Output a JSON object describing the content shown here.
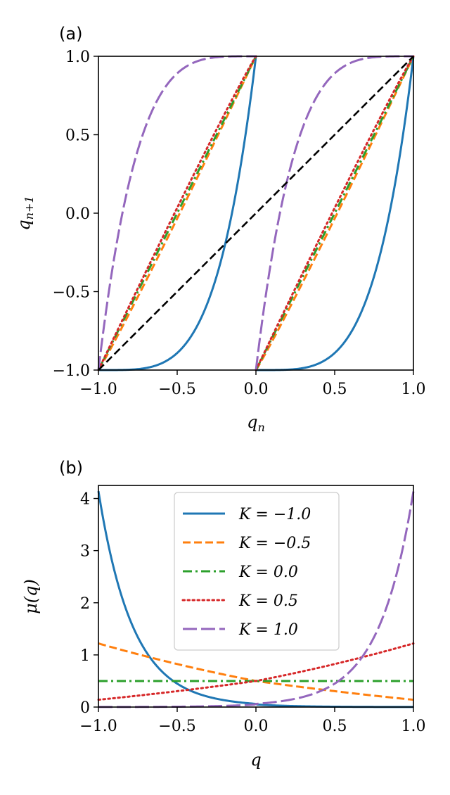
{
  "chart_data": [
    {
      "type": "line",
      "panel": "(a)",
      "xlabel": "q_n",
      "ylabel": "q_{n+1}",
      "xlim": [
        -1.0,
        1.0
      ],
      "ylim": [
        -1.0,
        1.0
      ],
      "xticks": [
        "−1.0",
        "−0.5",
        "0.0",
        "0.5",
        "1.0"
      ],
      "yticks": [
        "−1.0",
        "−0.5",
        "0.0",
        "0.5",
        "1.0"
      ],
      "series": [
        {
          "name": "K = −1.0",
          "K": -1.0,
          "color": "#1f77b4",
          "dash": "solid"
        },
        {
          "name": "K = −0.5",
          "K": -0.5,
          "color": "#ff7f0e",
          "dash": "dashed"
        },
        {
          "name": "K = 0.0",
          "K": 0.0,
          "color": "#2ca02c",
          "dash": "dashdot"
        },
        {
          "name": "K = 0.5",
          "K": 0.5,
          "color": "#d62728",
          "dash": "dotted"
        },
        {
          "name": "K = 1.0",
          "K": 1.0,
          "color": "#9467bd",
          "dash": "longdash"
        },
        {
          "name": "identity",
          "color": "#000000",
          "dash": "dashed",
          "x": [
            -1.0,
            1.0
          ],
          "y": [
            -1.0,
            1.0
          ]
        }
      ]
    },
    {
      "type": "line",
      "panel": "(b)",
      "xlabel": "q",
      "ylabel": "μ(q)",
      "xlim": [
        -1.0,
        1.0
      ],
      "ylim": [
        0,
        4.25
      ],
      "xticks": [
        "−1.0",
        "−0.5",
        "0.0",
        "0.5",
        "1.0"
      ],
      "yticks": [
        "0",
        "1",
        "2",
        "3",
        "4"
      ],
      "legend_position": "top-center",
      "series": [
        {
          "name": "K = −1.0",
          "K": -1.0,
          "color": "#1f77b4",
          "dash": "solid"
        },
        {
          "name": "K = −0.5",
          "K": -0.5,
          "color": "#ff7f0e",
          "dash": "dashed"
        },
        {
          "name": "K = 0.0",
          "K": 0.0,
          "color": "#2ca02c",
          "dash": "dashdot"
        },
        {
          "name": "K = 0.5",
          "K": 0.5,
          "color": "#d62728",
          "dash": "dotted"
        },
        {
          "name": "K = 1.0",
          "K": 1.0,
          "color": "#9467bd",
          "dash": "longdash"
        }
      ]
    }
  ]
}
